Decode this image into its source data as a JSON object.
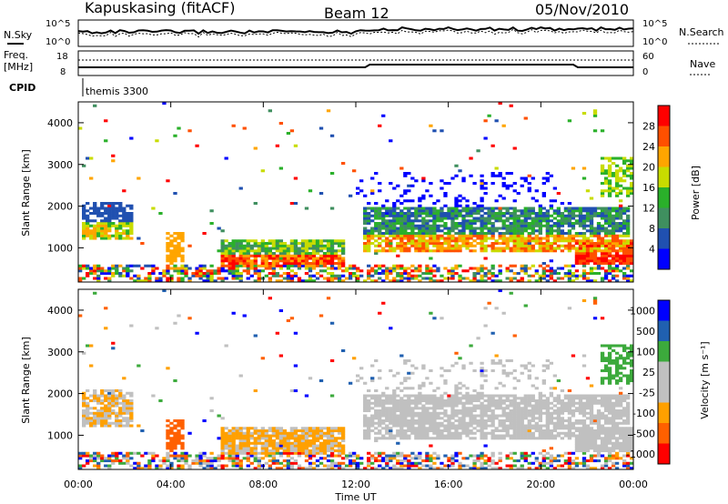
{
  "header": {
    "title": "Kapuskasing (fitACF)",
    "beam": "Beam 12",
    "date": "05/Nov/2010"
  },
  "top_strip": {
    "left_label": "N.Sky",
    "left_ticks": [
      "10^5",
      "10^0"
    ],
    "right_ticks": [
      "10^5",
      "10^0"
    ],
    "right_label": "N.Search"
  },
  "freq_strip": {
    "left_label_1": "Freq.",
    "left_label_2": "[MHz]",
    "left_ticks": [
      "18",
      "8"
    ],
    "right_ticks": [
      "60",
      "0"
    ],
    "right_label": "Nave"
  },
  "cpid": {
    "label": "CPID",
    "value": "themis 3300"
  },
  "colors": {
    "power_scale": [
      "#0000ff",
      "#2050b0",
      "#3f8f5f",
      "#2ab02a",
      "#c8dc00",
      "#ffa500",
      "#ff5000",
      "#ff0000"
    ],
    "velocity_scale": [
      "#ff0000",
      "#ff6000",
      "#ffa000",
      "#c0c0c0",
      "#c0c0c0",
      "#3caa3c",
      "#2060b0",
      "#0000ff"
    ]
  },
  "chart_data": [
    {
      "type": "heatmap",
      "panel": "power",
      "ylabel": "Slant Range [km]",
      "yticks": [
        "1000",
        "2000",
        "3000",
        "4000"
      ],
      "ylim": [
        180,
        4500
      ],
      "colorbar_label": "Power [dB]",
      "colorbar_ticks": [
        "4",
        "8",
        "12",
        "16",
        "20",
        "24",
        "28"
      ],
      "colorbar_range": [
        0,
        30
      ]
    },
    {
      "type": "heatmap",
      "panel": "velocity",
      "ylabel": "Slant Range [km]",
      "yticks": [
        "1000",
        "2000",
        "3000",
        "4000"
      ],
      "ylim": [
        180,
        4500
      ],
      "colorbar_label": "Velocity [m s⁻¹]",
      "colorbar_ticks": [
        "-1000",
        "-500",
        "-100",
        "-25",
        "25",
        "100",
        "500",
        "1000"
      ]
    }
  ],
  "x_axis": {
    "label": "Time UT",
    "ticks": [
      "00:00",
      "04:00",
      "08:00",
      "12:00",
      "16:00",
      "20:00",
      "00:00"
    ]
  }
}
